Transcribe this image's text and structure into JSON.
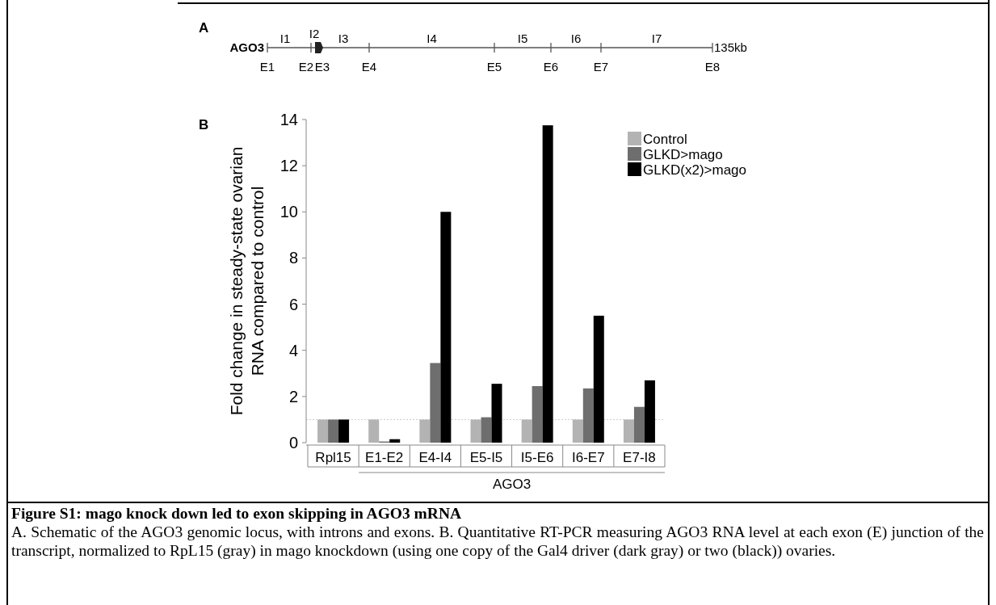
{
  "chart_data": [
    {
      "type": "other",
      "title": "A",
      "categories": [
        "E1",
        "E2",
        "E3",
        "E4",
        "E5",
        "E6",
        "E7",
        "E8"
      ],
      "annotations": [
        "AGO3",
        "135kb",
        "I1",
        "I2",
        "I3",
        "I4",
        "I5",
        "I6",
        "I7"
      ]
    },
    {
      "type": "bar",
      "title": "B",
      "ylabel": "Fold change in steady-state ovarian\nRNA compared to control",
      "categories": [
        "Rpl15",
        "E1-E2",
        "E4-I4",
        "E5-I5",
        "I5-E6",
        "I6-E7",
        "E7-I8"
      ],
      "series": [
        {
          "name": "Control",
          "color": "#b3b3b3",
          "values": [
            1,
            1,
            1,
            1,
            1,
            1,
            1
          ]
        },
        {
          "name": "GLKD>mago",
          "color": "#6e6e6e",
          "values": [
            1,
            0.05,
            3.45,
            1.1,
            2.45,
            2.35,
            1.55
          ]
        },
        {
          "name": "GLKD(x2)>mago",
          "color": "#000000",
          "values": [
            1,
            0.15,
            10,
            2.55,
            13.75,
            5.5,
            2.7
          ]
        }
      ],
      "ylim": [
        0,
        14
      ],
      "yticks": [
        0,
        2,
        4,
        6,
        8,
        10,
        12,
        14
      ],
      "legend": "top right",
      "grid": false,
      "ref_lines": [
        {
          "axis": "y",
          "value": 1,
          "color": "#cccccc",
          "line_style": "dotted"
        }
      ],
      "annotations": [
        "AGO3",
        "Figure S1: mago knock down led to exon skipping in AGO3 mRNA",
        "A. Schematic of the AGO3 genomic locus, with introns and exons. B. Quantitative RT-PCR measuring AGO3 RNA level at each exon (E) junction of the transcript, normalized to RpL15 (gray) in mago knockdown (using one copy of the Gal4 driver (dark gray) or two (black)) ovaries."
      ]
    }
  ]
}
